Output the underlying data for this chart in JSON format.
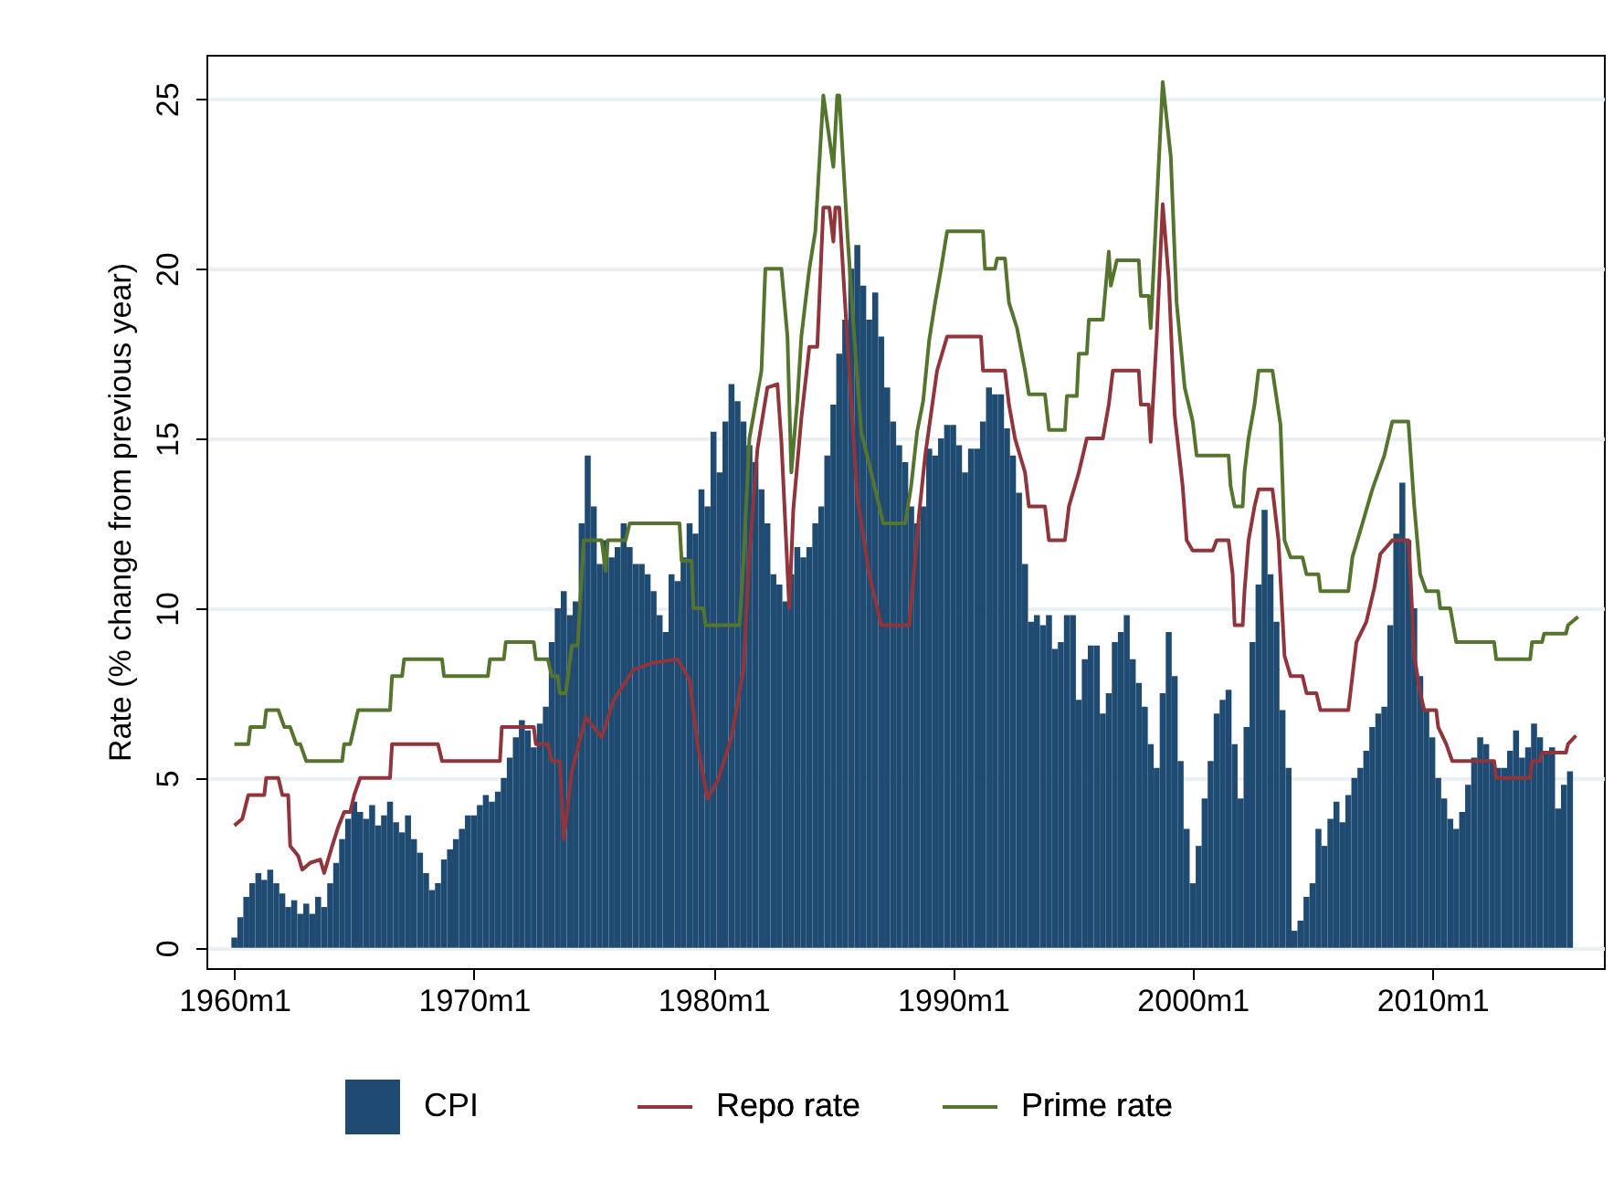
{
  "chart_data": {
    "type": "bar",
    "ylabel": "Rate (% change from previous year)",
    "xlim": [
      "1958-11",
      "2017-03"
    ],
    "ylim": [
      -0.6,
      26.3
    ],
    "xticks": [
      {
        "value": "1960-01",
        "label": "1960m1"
      },
      {
        "value": "1970-01",
        "label": "1970m1"
      },
      {
        "value": "1980-01",
        "label": "1980m1"
      },
      {
        "value": "1990-01",
        "label": "1990m1"
      },
      {
        "value": "2000-01",
        "label": "2000m1"
      },
      {
        "value": "2010-01",
        "label": "2010m1"
      }
    ],
    "yticks": [
      0,
      5,
      10,
      15,
      20,
      25
    ],
    "grid": "y",
    "legend": "bottom",
    "series": [
      {
        "name": "CPI",
        "color": "#1f4a72",
        "x": [
          "1960-01",
          "1960-04",
          "1960-07",
          "1960-10",
          "1961-01",
          "1961-04",
          "1961-07",
          "1961-10",
          "1962-01",
          "1962-04",
          "1962-07",
          "1962-10",
          "1963-01",
          "1963-04",
          "1963-07",
          "1963-10",
          "1964-01",
          "1964-04",
          "1964-07",
          "1964-10",
          "1965-01",
          "1965-04",
          "1965-07",
          "1965-10",
          "1966-01",
          "1966-04",
          "1966-07",
          "1966-10",
          "1967-01",
          "1967-04",
          "1967-07",
          "1967-10",
          "1968-01",
          "1968-04",
          "1968-07",
          "1968-10",
          "1969-01",
          "1969-04",
          "1969-07",
          "1969-10",
          "1970-01",
          "1970-04",
          "1970-07",
          "1970-10",
          "1971-01",
          "1971-04",
          "1971-07",
          "1971-10",
          "1972-01",
          "1972-04",
          "1972-07",
          "1972-10",
          "1973-01",
          "1973-04",
          "1973-07",
          "1973-10",
          "1974-01",
          "1974-04",
          "1974-07",
          "1974-10",
          "1975-01",
          "1975-04",
          "1975-07",
          "1975-10",
          "1976-01",
          "1976-04",
          "1976-07",
          "1976-10",
          "1977-01",
          "1977-04",
          "1977-07",
          "1977-10",
          "1978-01",
          "1978-04",
          "1978-07",
          "1978-10",
          "1979-01",
          "1979-04",
          "1979-07",
          "1979-10",
          "1980-01",
          "1980-04",
          "1980-07",
          "1980-10",
          "1981-01",
          "1981-04",
          "1981-07",
          "1981-10",
          "1982-01",
          "1982-04",
          "1982-07",
          "1982-10",
          "1983-01",
          "1983-04",
          "1983-07",
          "1983-10",
          "1984-01",
          "1984-04",
          "1984-07",
          "1984-10",
          "1985-01",
          "1985-04",
          "1985-07",
          "1985-10",
          "1986-01",
          "1986-04",
          "1986-07",
          "1986-10",
          "1987-01",
          "1987-04",
          "1987-07",
          "1987-10",
          "1988-01",
          "1988-04",
          "1988-07",
          "1988-10",
          "1989-01",
          "1989-04",
          "1989-07",
          "1989-10",
          "1990-01",
          "1990-04",
          "1990-07",
          "1990-10",
          "1991-01",
          "1991-04",
          "1991-07",
          "1991-10",
          "1992-01",
          "1992-04",
          "1992-07",
          "1992-10",
          "1993-01",
          "1993-04",
          "1993-07",
          "1993-10",
          "1994-01",
          "1994-04",
          "1994-07",
          "1994-10",
          "1995-01",
          "1995-04",
          "1995-07",
          "1995-10",
          "1996-01",
          "1996-04",
          "1996-07",
          "1996-10",
          "1997-01",
          "1997-04",
          "1997-07",
          "1997-10",
          "1998-01",
          "1998-04",
          "1998-07",
          "1998-10",
          "1999-01",
          "1999-04",
          "1999-07",
          "1999-10",
          "2000-01",
          "2000-04",
          "2000-07",
          "2000-10",
          "2001-01",
          "2001-04",
          "2001-07",
          "2001-10",
          "2002-01",
          "2002-04",
          "2002-07",
          "2002-10",
          "2003-01",
          "2003-04",
          "2003-07",
          "2003-10",
          "2004-01",
          "2004-04",
          "2004-07",
          "2004-10",
          "2005-01",
          "2005-04",
          "2005-07",
          "2005-10",
          "2006-01",
          "2006-04",
          "2006-07",
          "2006-10",
          "2007-01",
          "2007-04",
          "2007-07",
          "2007-10",
          "2008-01",
          "2008-04",
          "2008-07",
          "2008-10",
          "2009-01",
          "2009-04",
          "2009-07",
          "2009-10",
          "2010-01",
          "2010-04",
          "2010-07",
          "2010-10",
          "2011-01",
          "2011-04",
          "2011-07",
          "2011-10",
          "2012-01",
          "2012-04",
          "2012-07",
          "2012-10",
          "2013-01",
          "2013-04",
          "2013-07",
          "2013-10",
          "2014-01",
          "2014-04",
          "2014-07",
          "2014-10",
          "2015-01",
          "2015-04",
          "2015-07",
          "2015-10"
        ],
        "values": [
          0.3,
          0.9,
          1.5,
          1.9,
          2.2,
          2.0,
          2.3,
          1.9,
          1.6,
          1.2,
          1.4,
          1.0,
          1.3,
          1.0,
          1.5,
          1.2,
          1.9,
          2.5,
          3.2,
          3.8,
          4.3,
          4.0,
          3.8,
          4.2,
          3.6,
          3.9,
          4.3,
          3.7,
          3.4,
          3.9,
          3.2,
          2.8,
          2.2,
          1.7,
          1.9,
          2.6,
          2.9,
          3.2,
          3.5,
          3.9,
          3.9,
          4.2,
          4.5,
          4.3,
          4.6,
          5.0,
          5.6,
          6.2,
          6.7,
          6.4,
          5.9,
          6.6,
          7.1,
          9.0,
          10.0,
          10.5,
          9.8,
          10.2,
          12.5,
          14.5,
          13.0,
          11.3,
          12.0,
          11.5,
          11.8,
          12.5,
          11.8,
          11.3,
          11.3,
          11.0,
          10.5,
          9.8,
          9.3,
          11.0,
          10.8,
          11.5,
          12.5,
          12.2,
          13.5,
          13.0,
          15.2,
          14.0,
          15.5,
          16.6,
          16.1,
          15.5,
          14.8,
          14.3,
          13.5,
          12.5,
          11.0,
          10.7,
          10.2,
          11.0,
          11.8,
          11.5,
          11.8,
          12.5,
          13.0,
          14.5,
          16.0,
          17.5,
          18.5,
          20.0,
          20.7,
          19.5,
          18.5,
          19.3,
          18.0,
          16.5,
          15.5,
          14.8,
          14.3,
          13.0,
          12.5,
          13.0,
          14.7,
          14.5,
          15.0,
          15.4,
          15.4,
          14.8,
          14.0,
          14.7,
          14.7,
          15.5,
          16.5,
          16.3,
          16.3,
          15.3,
          14.5,
          13.4,
          11.3,
          9.6,
          9.8,
          9.5,
          9.8,
          8.8,
          9.0,
          9.8,
          9.8,
          7.3,
          8.5,
          8.9,
          8.9,
          6.9,
          7.5,
          9.0,
          9.3,
          9.8,
          8.5,
          7.8,
          7.1,
          6.0,
          5.3,
          7.5,
          9.3,
          8.0,
          5.5,
          3.5,
          1.9,
          3.0,
          4.4,
          5.5,
          6.9,
          7.3,
          7.6,
          6.0,
          4.4,
          6.5,
          9.0,
          10.7,
          12.9,
          11.0,
          9.6,
          7.0,
          5.3,
          0.5,
          0.8,
          1.5,
          1.9,
          3.5,
          3.0,
          3.8,
          4.3,
          3.7,
          4.5,
          5.0,
          5.3,
          5.8,
          6.5,
          6.9,
          7.1,
          9.5,
          12.2,
          13.7,
          12.0,
          10.0,
          8.0,
          7.0,
          6.2,
          5.0,
          4.4,
          3.8,
          3.5,
          4.0,
          4.8,
          5.6,
          6.2,
          6.0,
          5.5,
          5.3,
          5.3,
          5.8,
          6.4,
          5.6,
          5.9,
          6.6,
          6.2,
          5.8,
          5.9,
          4.1,
          4.8,
          5.2
        ]
      },
      {
        "name": "Repo rate",
        "type": "line",
        "color": "#90353b",
        "x": [
          "1960-01",
          "1960-05",
          "1960-08",
          "1961-04",
          "1961-05",
          "1961-11",
          "1962-01",
          "1962-04",
          "1962-05",
          "1962-09",
          "1962-11",
          "1963-03",
          "1963-08",
          "1963-10",
          "1964-02",
          "1964-05",
          "1964-08",
          "1964-11",
          "1965-01",
          "1965-04",
          "1966-07",
          "1966-08",
          "1968-07",
          "1968-09",
          "1971-02",
          "1971-03",
          "1972-07",
          "1972-08",
          "1973-02",
          "1973-04",
          "1973-08",
          "1973-10",
          "1974-02",
          "1974-09",
          "1975-05",
          "1975-11",
          "1976-09",
          "1977-07",
          "1978-07",
          "1979-01",
          "1979-05",
          "1979-10",
          "1980-03",
          "1980-10",
          "1981-04",
          "1981-07",
          "1981-11",
          "1982-04",
          "1982-09",
          "1982-11",
          "1983-03",
          "1983-05",
          "1983-09",
          "1984-01",
          "1984-05",
          "1984-08",
          "1984-11",
          "1985-01",
          "1985-02",
          "1985-04",
          "1985-08",
          "1986-01",
          "1986-07",
          "1987-01",
          "1988-03",
          "1988-05",
          "1988-08",
          "1988-11",
          "1989-05",
          "1989-10",
          "1991-03",
          "1991-04",
          "1992-03",
          "1992-05",
          "1992-08",
          "1993-01",
          "1993-03",
          "1993-11",
          "1994-01",
          "1994-09",
          "1994-11",
          "1995-04",
          "1995-08",
          "1996-04",
          "1996-07",
          "1996-09",
          "1997-10",
          "1997-11",
          "1998-03",
          "1998-04",
          "1998-07",
          "1998-10",
          "1999-01",
          "1999-04",
          "1999-08",
          "1999-10",
          "2000-01",
          "2000-11",
          "2001-01",
          "2001-07",
          "2001-09",
          "2001-10",
          "2002-02",
          "2002-03",
          "2002-05",
          "2002-08",
          "2002-10",
          "2003-05",
          "2003-08",
          "2003-11",
          "2004-02",
          "2004-08",
          "2004-10",
          "2005-03",
          "2005-05",
          "2006-07",
          "2006-08",
          "2006-11",
          "2007-04",
          "2007-08",
          "2007-11",
          "2008-05",
          "2009-01",
          "2009-02",
          "2009-04",
          "2009-07",
          "2009-09",
          "2010-03",
          "2010-04",
          "2010-08",
          "2010-11",
          "2012-08",
          "2012-09",
          "2014-02",
          "2014-03",
          "2014-07",
          "2014-08",
          "2015-08",
          "2015-09",
          "2016-01"
        ],
        "values": [
          3.6,
          3.8,
          4.5,
          4.5,
          5.0,
          5.0,
          4.5,
          4.5,
          3.0,
          2.7,
          2.3,
          2.5,
          2.6,
          2.2,
          3.0,
          3.55,
          4.0,
          4.0,
          4.5,
          5.0,
          5.0,
          6.0,
          6.0,
          5.5,
          5.5,
          6.5,
          6.5,
          6.0,
          6.0,
          5.5,
          5.5,
          3.2,
          5.2,
          6.8,
          6.2,
          7.3,
          8.2,
          8.4,
          8.5,
          7.9,
          6.0,
          4.4,
          4.9,
          6.2,
          8.2,
          11.6,
          14.7,
          16.5,
          16.6,
          14.9,
          10.0,
          12.9,
          15.6,
          17.7,
          17.7,
          21.8,
          21.8,
          20.8,
          21.8,
          21.8,
          17.9,
          13.3,
          11.0,
          9.5,
          9.5,
          10.8,
          12.8,
          14.5,
          17.0,
          18.0,
          18.0,
          17.0,
          17.0,
          16.0,
          15.0,
          14.0,
          13.0,
          13.0,
          12.0,
          12.0,
          13.0,
          14.0,
          15.0,
          15.0,
          16.0,
          17.0,
          17.0,
          16.0,
          16.0,
          14.9,
          18.0,
          21.9,
          19.7,
          15.7,
          13.6,
          12.0,
          11.7,
          11.7,
          12.0,
          12.0,
          11.0,
          9.5,
          9.5,
          10.5,
          12.0,
          13.0,
          13.5,
          13.5,
          12.0,
          8.6,
          8.0,
          8.0,
          7.5,
          7.5,
          7.0,
          7.0,
          7.5,
          9.0,
          9.6,
          10.6,
          11.6,
          12.0,
          12.0,
          11.0,
          8.6,
          7.5,
          7.0,
          7.0,
          6.5,
          6.0,
          5.5,
          5.5,
          5.0,
          5.0,
          5.5,
          5.5,
          5.75,
          5.75,
          6.0,
          6.25
        ]
      },
      {
        "name": "Prime rate",
        "type": "line",
        "color": "#55752f",
        "x": [
          "1960-01",
          "1960-08",
          "1960-09",
          "1961-04",
          "1961-05",
          "1961-11",
          "1962-02",
          "1962-05",
          "1962-08",
          "1962-10",
          "1963-01",
          "1964-07",
          "1964-08",
          "1964-11",
          "1965-01",
          "1965-03",
          "1966-07",
          "1966-08",
          "1967-01",
          "1967-02",
          "1968-09",
          "1968-10",
          "1970-08",
          "1970-09",
          "1971-04",
          "1971-05",
          "1972-07",
          "1972-08",
          "1973-02",
          "1973-04",
          "1973-07",
          "1973-08",
          "1973-11",
          "1974-02",
          "1974-05",
          "1974-08",
          "1975-05",
          "1975-07",
          "1975-08",
          "1976-05",
          "1976-07",
          "1978-08",
          "1978-09",
          "1979-02",
          "1979-03",
          "1979-08",
          "1979-09",
          "1981-02",
          "1981-04",
          "1981-07",
          "1981-10",
          "1982-01",
          "1982-03",
          "1982-11",
          "1983-02",
          "1983-04",
          "1983-07",
          "1983-09",
          "1984-01",
          "1984-04",
          "1984-08",
          "1985-01",
          "1985-03",
          "1985-04",
          "1985-08",
          "1985-11",
          "1986-03",
          "1986-08",
          "1986-10",
          "1987-02",
          "1988-01",
          "1988-04",
          "1988-07",
          "1988-10",
          "1989-01",
          "1989-04",
          "1989-07",
          "1989-10",
          "1991-04",
          "1991-05",
          "1991-10",
          "1991-11",
          "1992-03",
          "1992-05",
          "1992-09",
          "1993-01",
          "1993-03",
          "1993-11",
          "1994-01",
          "1994-09",
          "1994-10",
          "1995-03",
          "1995-04",
          "1995-08",
          "1995-09",
          "1996-04",
          "1996-07",
          "1996-08",
          "1996-11",
          "1997-10",
          "1997-11",
          "1998-03",
          "1998-04",
          "1998-10",
          "1999-02",
          "1999-05",
          "1999-09",
          "2000-01",
          "2000-03",
          "2001-07",
          "2001-08",
          "2001-10",
          "2002-02",
          "2002-03",
          "2002-05",
          "2002-08",
          "2002-10",
          "2003-05",
          "2003-09",
          "2003-11",
          "2004-02",
          "2004-08",
          "2004-10",
          "2005-04",
          "2005-05",
          "2006-07",
          "2006-09",
          "2007-02",
          "2007-07",
          "2008-01",
          "2008-05",
          "2009-01",
          "2009-04",
          "2009-07",
          "2009-10",
          "2010-04",
          "2010-05",
          "2010-10",
          "2011-01",
          "2012-08",
          "2012-09",
          "2014-02",
          "2014-03",
          "2014-08",
          "2014-09",
          "2015-08",
          "2015-09",
          "2016-02"
        ],
        "values": [
          6.0,
          6.0,
          6.5,
          6.5,
          7.0,
          7.0,
          6.5,
          6.5,
          6.0,
          6.0,
          5.5,
          5.5,
          6.0,
          6.0,
          6.5,
          7.0,
          7.0,
          8.0,
          8.0,
          8.5,
          8.5,
          8.0,
          8.0,
          8.5,
          8.5,
          9.0,
          9.0,
          8.5,
          8.5,
          8.0,
          8.0,
          7.5,
          7.5,
          8.9,
          8.9,
          12.0,
          12.0,
          11.1,
          12.0,
          12.0,
          12.5,
          12.5,
          11.4,
          11.4,
          10.0,
          10.0,
          9.5,
          9.5,
          11.4,
          15.0,
          16.0,
          17.0,
          20.0,
          20.0,
          18.0,
          14.0,
          16.1,
          18.0,
          20.0,
          21.1,
          25.1,
          23.0,
          25.1,
          25.1,
          21.1,
          18.4,
          15.2,
          14.0,
          13.5,
          12.5,
          12.5,
          13.6,
          15.2,
          16.1,
          17.9,
          19.0,
          20.0,
          21.1,
          21.1,
          20.0,
          20.0,
          20.3,
          20.3,
          19.0,
          18.25,
          17.0,
          16.3,
          16.3,
          15.25,
          15.25,
          16.25,
          16.25,
          17.5,
          17.5,
          18.5,
          18.5,
          20.5,
          19.5,
          20.25,
          20.25,
          19.2,
          19.2,
          18.25,
          25.5,
          23.3,
          19.0,
          16.5,
          15.5,
          14.5,
          14.5,
          13.6,
          13.0,
          13.0,
          14.0,
          15.0,
          16.0,
          17.0,
          17.0,
          15.4,
          12.0,
          11.5,
          11.5,
          11.0,
          11.0,
          10.5,
          10.5,
          11.5,
          12.5,
          13.5,
          14.5,
          15.5,
          15.5,
          13.0,
          11.0,
          10.5,
          10.5,
          10.0,
          10.0,
          9.0,
          9.0,
          8.5,
          8.5,
          9.0,
          9.0,
          9.25,
          9.25,
          9.5,
          9.75
        ]
      }
    ]
  }
}
